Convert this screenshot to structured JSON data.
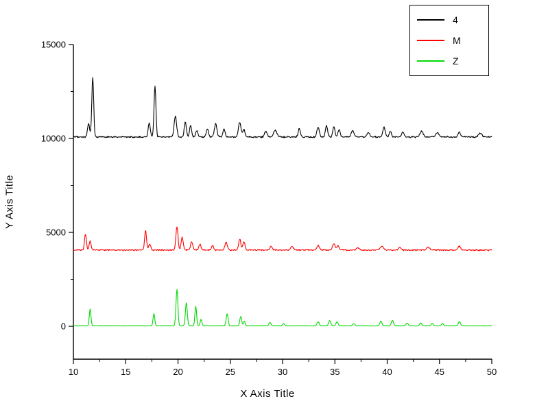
{
  "chart_data": {
    "type": "line",
    "title": "",
    "xlabel": "X  Axis Title",
    "ylabel": "Y Axis Title",
    "xlim": [
      10,
      50
    ],
    "ylim": [
      -1750,
      15000
    ],
    "x_ticks": [
      10,
      15,
      20,
      25,
      30,
      35,
      40,
      45,
      50
    ],
    "x_minor_ticks": [
      12.5,
      17.5,
      22.5,
      27.5,
      32.5,
      37.5,
      42.5,
      47.5
    ],
    "y_ticks": [
      0,
      5000,
      10000,
      15000
    ],
    "y_minor_ticks": [
      2500,
      7500,
      12500
    ],
    "grid": false,
    "legend_position": "top-right",
    "background_color": "#ffffff",
    "axis_color": "#000000",
    "peak_format": [
      "x",
      "height_above_baseline",
      "sigma"
    ],
    "series": [
      {
        "name": "4",
        "color": "#000000",
        "baseline": 10080,
        "noise": 50,
        "peaks": [
          [
            11.45,
            700,
            0.1
          ],
          [
            11.85,
            3200,
            0.09
          ],
          [
            17.25,
            750,
            0.1
          ],
          [
            17.8,
            2700,
            0.09
          ],
          [
            19.75,
            1100,
            0.12
          ],
          [
            20.7,
            800,
            0.1
          ],
          [
            21.2,
            600,
            0.1
          ],
          [
            21.8,
            350,
            0.1
          ],
          [
            22.8,
            450,
            0.1
          ],
          [
            23.6,
            700,
            0.12
          ],
          [
            24.4,
            450,
            0.1
          ],
          [
            25.9,
            800,
            0.12
          ],
          [
            26.3,
            400,
            0.1
          ],
          [
            28.4,
            300,
            0.12
          ],
          [
            29.3,
            350,
            0.15
          ],
          [
            31.6,
            450,
            0.1
          ],
          [
            33.4,
            500,
            0.12
          ],
          [
            34.2,
            600,
            0.1
          ],
          [
            34.9,
            550,
            0.1
          ],
          [
            35.4,
            400,
            0.1
          ],
          [
            36.7,
            350,
            0.12
          ],
          [
            38.2,
            250,
            0.12
          ],
          [
            39.7,
            500,
            0.12
          ],
          [
            40.3,
            300,
            0.1
          ],
          [
            41.5,
            250,
            0.12
          ],
          [
            43.3,
            300,
            0.15
          ],
          [
            44.8,
            250,
            0.15
          ],
          [
            46.9,
            250,
            0.12
          ],
          [
            48.9,
            200,
            0.15
          ]
        ]
      },
      {
        "name": "M",
        "color": "#ff0000",
        "baseline": 4060,
        "noise": 45,
        "peaks": [
          [
            11.15,
            850,
            0.09
          ],
          [
            11.6,
            500,
            0.09
          ],
          [
            16.9,
            1050,
            0.09
          ],
          [
            17.3,
            300,
            0.1
          ],
          [
            19.9,
            1250,
            0.1
          ],
          [
            20.4,
            700,
            0.1
          ],
          [
            21.3,
            450,
            0.1
          ],
          [
            22.1,
            300,
            0.1
          ],
          [
            23.3,
            250,
            0.1
          ],
          [
            24.6,
            400,
            0.12
          ],
          [
            25.9,
            600,
            0.1
          ],
          [
            26.3,
            450,
            0.1
          ],
          [
            28.9,
            200,
            0.12
          ],
          [
            30.9,
            200,
            0.12
          ],
          [
            33.4,
            250,
            0.12
          ],
          [
            34.9,
            350,
            0.12
          ],
          [
            35.3,
            250,
            0.1
          ],
          [
            37.2,
            150,
            0.12
          ],
          [
            39.5,
            200,
            0.15
          ],
          [
            41.2,
            150,
            0.12
          ],
          [
            43.9,
            150,
            0.15
          ],
          [
            46.9,
            200,
            0.12
          ]
        ]
      },
      {
        "name": "Z",
        "color": "#00d900",
        "baseline": 25,
        "noise": 12,
        "peaks": [
          [
            11.6,
            900,
            0.08
          ],
          [
            17.7,
            650,
            0.08
          ],
          [
            19.9,
            1950,
            0.09
          ],
          [
            20.8,
            1250,
            0.09
          ],
          [
            21.7,
            1050,
            0.08
          ],
          [
            22.2,
            350,
            0.08
          ],
          [
            24.7,
            650,
            0.09
          ],
          [
            26.0,
            500,
            0.09
          ],
          [
            26.35,
            250,
            0.08
          ],
          [
            28.8,
            180,
            0.1
          ],
          [
            30.1,
            120,
            0.1
          ],
          [
            33.4,
            220,
            0.1
          ],
          [
            34.5,
            280,
            0.1
          ],
          [
            35.2,
            220,
            0.1
          ],
          [
            36.8,
            120,
            0.1
          ],
          [
            39.4,
            250,
            0.1
          ],
          [
            40.5,
            300,
            0.1
          ],
          [
            41.9,
            150,
            0.1
          ],
          [
            43.2,
            150,
            0.1
          ],
          [
            44.3,
            120,
            0.1
          ],
          [
            45.3,
            120,
            0.1
          ],
          [
            46.9,
            220,
            0.1
          ]
        ]
      }
    ]
  }
}
